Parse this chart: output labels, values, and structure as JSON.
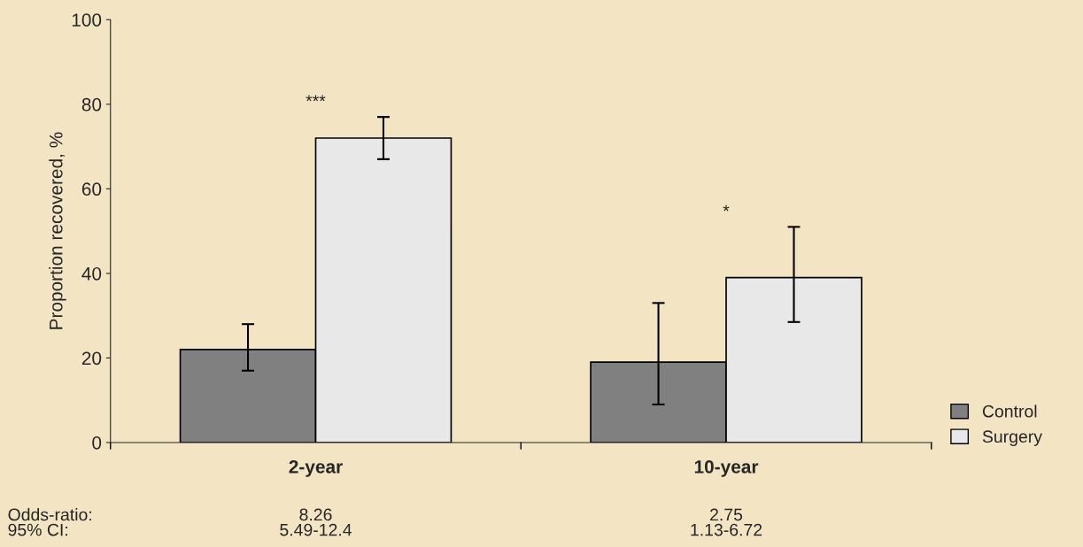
{
  "chart_data": {
    "type": "bar",
    "ylabel": "Proportion recovered, %",
    "categories": [
      "2-year",
      "10-year"
    ],
    "series": [
      {
        "name": "Control",
        "color": "#808080",
        "values": [
          22,
          19
        ],
        "errors": [
          [
            17,
            28
          ],
          [
            9,
            33
          ]
        ]
      },
      {
        "name": "Surgery",
        "color": "#e8e8e8",
        "values": [
          72,
          39
        ],
        "errors": [
          [
            67,
            77
          ],
          [
            28.5,
            51
          ]
        ]
      }
    ],
    "ylim": [
      0,
      100
    ],
    "yticks": [
      0,
      20,
      40,
      60,
      80,
      100
    ],
    "grid": false,
    "legend": "bottom right",
    "annotations": [
      "***",
      "*",
      "Odds-ratio:",
      "8.26",
      "2.75",
      "95% CI:",
      "5.49-12.4",
      "1.13-6.72"
    ]
  }
}
